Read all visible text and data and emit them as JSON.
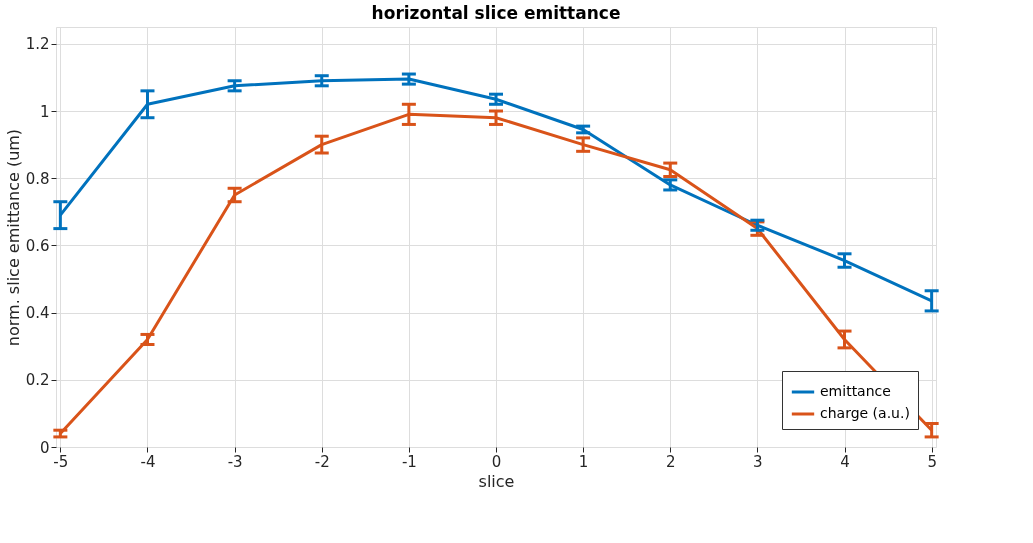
{
  "chart_data": {
    "type": "line",
    "title": "horizontal slice emittance",
    "xlabel": "slice",
    "ylabel": "norm. slice emittance (um)",
    "x": [
      -5,
      -4,
      -3,
      -2,
      -1,
      0,
      1,
      2,
      3,
      4,
      5
    ],
    "series": [
      {
        "name": "emittance",
        "color": "#0072bd",
        "values": [
          0.69,
          1.02,
          1.075,
          1.09,
          1.095,
          1.035,
          0.945,
          0.78,
          0.66,
          0.555,
          0.435
        ],
        "errors": [
          0.04,
          0.04,
          0.015,
          0.015,
          0.015,
          0.015,
          0.01,
          0.015,
          0.015,
          0.02,
          0.03
        ]
      },
      {
        "name": "charge (a.u.)",
        "color": "#d95319",
        "values": [
          0.04,
          0.32,
          0.75,
          0.9,
          0.99,
          0.98,
          0.9,
          0.825,
          0.65,
          0.32,
          0.05
        ],
        "errors": [
          0.01,
          0.015,
          0.02,
          0.025,
          0.03,
          0.02,
          0.02,
          0.02,
          0.02,
          0.025,
          0.02
        ]
      }
    ],
    "xlim": [
      -5.05,
      5.05
    ],
    "ylim": [
      0,
      1.25
    ],
    "xticks": [
      -5,
      -4,
      -3,
      -2,
      -1,
      0,
      1,
      2,
      3,
      4,
      5
    ],
    "yticks": [
      0,
      0.2,
      0.4,
      0.6,
      0.8,
      1,
      1.2
    ],
    "grid": true,
    "legend": "bottom right",
    "marker": "none",
    "line_style": "solid"
  }
}
